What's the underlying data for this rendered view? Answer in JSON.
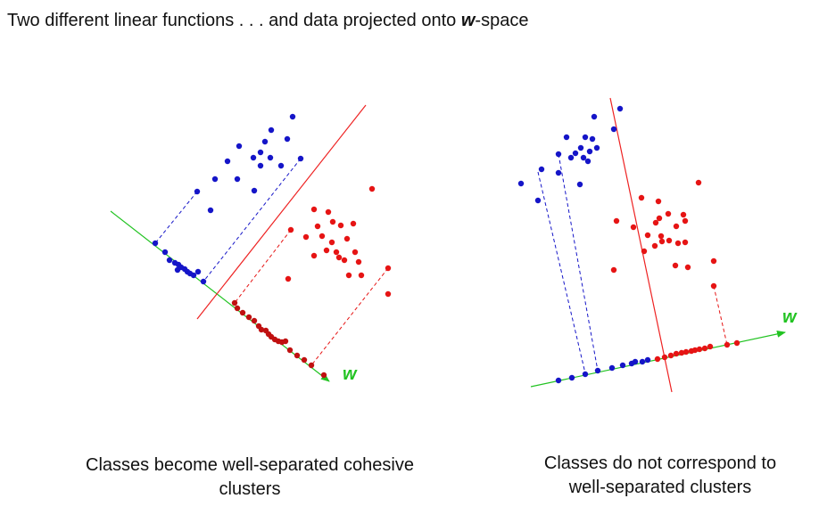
{
  "title": {
    "prefix": "Two different linear functions . . . and data projected onto ",
    "symbol": "w",
    "suffix": "-space"
  },
  "colors": {
    "class_a": "#1515c8",
    "class_b": "#e61414",
    "projected_b": "#c01010",
    "axis": "#22c322",
    "boundary": "#ee2222",
    "text": "#111111"
  },
  "panels": [
    {
      "id": "left",
      "axis_label": "w",
      "caption_line1": "Classes become well-separated cohesive",
      "caption_line2": "clusters"
    },
    {
      "id": "right",
      "axis_label": "w",
      "caption_line1": "Classes do not correspond to",
      "caption_line2": "well-separated clusters"
    }
  ]
}
